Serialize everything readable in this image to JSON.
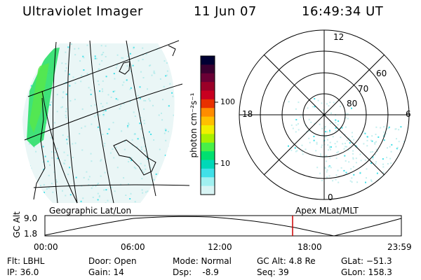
{
  "header": {
    "instrument": "Ultraviolet Imager",
    "date": "11 Jun 07",
    "time": "16:49:34 UT"
  },
  "colorbar": {
    "label": "photon cm⁻²s⁻¹",
    "ticks": [
      "100",
      "10"
    ],
    "colors": [
      "#000033",
      "#3a0030",
      "#6a0035",
      "#9b0028",
      "#c80020",
      "#e83000",
      "#ff8c00",
      "#ffc000",
      "#f0f000",
      "#a8f000",
      "#48f048",
      "#00e070",
      "#00d8b8",
      "#40e0e8",
      "#a0f0f0",
      "#d8f4f4"
    ]
  },
  "polar_plot": {
    "mlt_labels": {
      "top": "12",
      "bottom": "0",
      "left": "18",
      "right": "6"
    },
    "lat_labels": [
      "60",
      "70",
      "80"
    ]
  },
  "timeline": {
    "left_title": "Geographic Lat/Lon",
    "right_title": "Apex MLat/MLT",
    "y_axis_label": "GC Alt",
    "y_ticks": [
      "9.0",
      "1.8"
    ],
    "x_ticks": [
      "00:00",
      "06:00",
      "12:00",
      "18:00",
      "23:59"
    ],
    "current_marker_color": "#cc0000"
  },
  "info": {
    "flt": "Flt: LBHL",
    "ip": "IP: 36.0",
    "door": "Door: Open",
    "gain": "Gain: 14",
    "mode": "Mode: Normal",
    "dsp": "Dsp:    -8.9",
    "gc_alt": "GC Alt: 4.8 Re",
    "seq": "Seq: 39",
    "glat": "GLat: −51.3",
    "glon": "GLon: 158.3"
  }
}
